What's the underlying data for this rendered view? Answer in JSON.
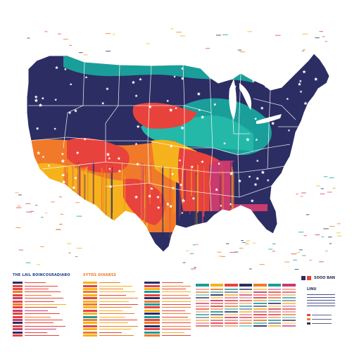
{
  "map": {
    "land_fill": "#2b2d63",
    "border_color": "#ffffff",
    "star_color": "#ffffff",
    "ocean_color": "#ffffff",
    "bands": [
      {
        "name": "teal",
        "color": "#1a9e9a"
      },
      {
        "name": "teal-light",
        "color": "#24b8a8"
      },
      {
        "name": "red",
        "color": "#e8423c"
      },
      {
        "name": "orange",
        "color": "#f07a2a"
      },
      {
        "name": "yellow",
        "color": "#f6b21c"
      },
      {
        "name": "magenta",
        "color": "#c93a6e"
      }
    ]
  },
  "panels": [
    {
      "title": "THE LAIL BOINCOSRADIABO",
      "title_color": "#1d3f8a",
      "rows": [
        {
          "swatch": "#2b2d63",
          "line": "#e8423c"
        },
        {
          "swatch": "#e8423c",
          "line": "#e8423c"
        },
        {
          "swatch": "#e8423c",
          "line": "#e8423c"
        },
        {
          "swatch": "#f07a2a",
          "line": "#e8423c"
        },
        {
          "swatch": "#e8423c",
          "line": "#f07a2a"
        },
        {
          "swatch": "#c93a6e",
          "line": "#e8423c"
        },
        {
          "swatch": "#e8423c",
          "line": "#e8423c"
        },
        {
          "swatch": "#f07a2a",
          "line": "#f6b21c"
        },
        {
          "swatch": "#e8423c",
          "line": "#e8423c"
        },
        {
          "swatch": "#c93a6e",
          "line": "#c93a6e"
        },
        {
          "swatch": "#e8423c",
          "line": "#e8423c"
        },
        {
          "swatch": "#e8423c",
          "line": "#f07a2a"
        },
        {
          "swatch": "#c93a6e",
          "line": "#e8423c"
        },
        {
          "swatch": "#2b2d63",
          "line": "#e8423c"
        },
        {
          "swatch": "#e8423c",
          "line": "#e8423c"
        },
        {
          "swatch": "#c93a6e",
          "line": "#c93a6e"
        },
        {
          "swatch": "#2b2d63",
          "line": "#e8423c"
        },
        {
          "swatch": "#e8423c",
          "line": "#e8423c"
        }
      ]
    },
    {
      "title": "SYTDS DIHABSS",
      "title_color": "#f07a2a",
      "rows": [
        {
          "swatch": "#f6b21c",
          "line": "#f07a2a"
        },
        {
          "swatch": "#e8423c",
          "line": "#f6b21c"
        },
        {
          "swatch": "#f6b21c",
          "line": "#f07a2a"
        },
        {
          "swatch": "#f07a2a",
          "line": "#f6b21c"
        },
        {
          "swatch": "#f6b21c",
          "line": "#e8423c"
        },
        {
          "swatch": "#e8423c",
          "line": "#f07a2a"
        },
        {
          "swatch": "#f6b21c",
          "line": "#f6b21c"
        },
        {
          "swatch": "#f07a2a",
          "line": "#e8423c"
        },
        {
          "swatch": "#f6b21c",
          "line": "#f07a2a"
        },
        {
          "swatch": "#e8423c",
          "line": "#f6b21c"
        },
        {
          "swatch": "#f6b21c",
          "line": "#f07a2a"
        },
        {
          "swatch": "#1a9e9a",
          "line": "#f6b21c"
        },
        {
          "swatch": "#f07a2a",
          "line": "#e8423c"
        },
        {
          "swatch": "#f6b21c",
          "line": "#f6b21c"
        },
        {
          "swatch": "#e8423c",
          "line": "#f07a2a"
        },
        {
          "swatch": "#f6b21c",
          "line": "#f6b21c"
        },
        {
          "swatch": "#f07a2a",
          "line": "#e8423c"
        },
        {
          "swatch": "#f6b21c",
          "line": "#f07a2a"
        }
      ]
    },
    {
      "title": "",
      "title_color": "#2b2d63",
      "rows": [
        {
          "swatch": "#2b2d63",
          "line": "#e8423c"
        },
        {
          "swatch": "#e8423c",
          "line": "#f07a2a"
        },
        {
          "swatch": "#f6b21c",
          "line": "#e8423c"
        },
        {
          "swatch": "#1a9e9a",
          "line": "#f6b21c"
        },
        {
          "swatch": "#e8423c",
          "line": "#f07a2a"
        },
        {
          "swatch": "#2b2d63",
          "line": "#e8423c"
        },
        {
          "swatch": "#f07a2a",
          "line": "#f6b21c"
        },
        {
          "swatch": "#1a9e9a",
          "line": "#e8423c"
        },
        {
          "swatch": "#e8423c",
          "line": "#f07a2a"
        },
        {
          "swatch": "#f6b21c",
          "line": "#e8423c"
        },
        {
          "swatch": "#2b2d63",
          "line": "#f07a2a"
        },
        {
          "swatch": "#1a9e9a",
          "line": "#e8423c"
        },
        {
          "swatch": "#e8423c",
          "line": "#f6b21c"
        },
        {
          "swatch": "#f07a2a",
          "line": "#e8423c"
        },
        {
          "swatch": "#2b2d63",
          "line": "#f07a2a"
        },
        {
          "swatch": "#e8423c",
          "line": "#e8423c"
        },
        {
          "swatch": "#1a9e9a",
          "line": "#f6b21c"
        },
        {
          "swatch": "#f07a2a",
          "line": "#e8423c"
        }
      ]
    }
  ],
  "legend": {
    "key_label": "SOOO BAN",
    "key_colors": [
      "#2b2d63",
      "#e8423c"
    ],
    "sub_label": "LINU",
    "swatch_colors": [
      "#e8423c",
      "#f07a2a",
      "#2b2d63"
    ]
  },
  "grid_panel": {
    "header_colors": [
      "#1a9e9a",
      "#f6b21c",
      "#e8423c",
      "#2b2d63",
      "#f07a2a",
      "#1a9e9a",
      "#c93a6e"
    ],
    "cell_colors": [
      "#e8423c",
      "#f07a2a",
      "#1a9e9a",
      "#2b2d63",
      "#f6b21c",
      "#c93a6e",
      "#e8423c"
    ]
  }
}
